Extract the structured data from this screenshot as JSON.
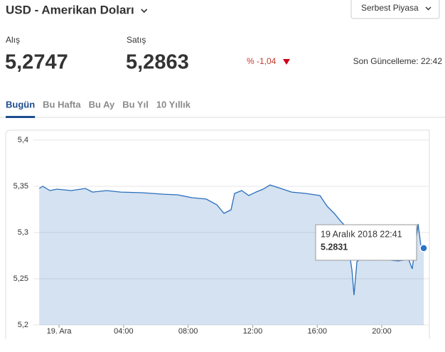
{
  "header": {
    "title": "USD - Amerikan Doları",
    "market_select": "Serbest Piyasa"
  },
  "quotes": {
    "buy_label": "Alış",
    "buy": "5,2747",
    "sell_label": "Satış",
    "sell": "5,2863",
    "change": "% -1,04",
    "updated": "Son Güncelleme: 22:42"
  },
  "tabs": [
    "Bugün",
    "Bu Hafta",
    "Bu Ay",
    "Bu Yıl",
    "10 Yıllık"
  ],
  "active_tab": 0,
  "chart_data": {
    "type": "area",
    "x": [
      -1.23,
      -1.01,
      -0.57,
      -0.13,
      0.75,
      1.63,
      2.07,
      2.95,
      3.83,
      5.15,
      6.48,
      7.36,
      8.24,
      9.12,
      9.78,
      10.22,
      10.66,
      10.88,
      11.32,
      11.76,
      12.2,
      12.64,
      13.08,
      13.74,
      14.41,
      15.29,
      16.17,
      16.61,
      17.05,
      17.49,
      17.84,
      18.02,
      18.15,
      18.28,
      18.46,
      18.81,
      19.25,
      20.13,
      21.01,
      21.67,
      21.89,
      22.11,
      22.25,
      22.42,
      22.6
    ],
    "values": [
      5.3477,
      5.35,
      5.3454,
      5.3469,
      5.3454,
      5.3477,
      5.3438,
      5.3454,
      5.3438,
      5.3431,
      5.3415,
      5.3408,
      5.3377,
      5.3362,
      5.33,
      5.3208,
      5.3246,
      5.3423,
      5.3454,
      5.34,
      5.3438,
      5.3469,
      5.3515,
      5.3477,
      5.3438,
      5.3423,
      5.34,
      5.3285,
      5.3208,
      5.3115,
      5.3054,
      5.2746,
      5.2592,
      5.2323,
      5.2685,
      5.2731,
      5.27,
      5.2708,
      5.2692,
      5.2708,
      5.2608,
      5.29,
      5.3092,
      5.2862,
      5.2831
    ],
    "color": "#2a6ebb",
    "xlim": [
      -1.59,
      22.95
    ],
    "ylim": [
      5.2,
      5.4
    ],
    "xticks": [
      {
        "value": 0,
        "label": "19. Ara"
      },
      {
        "value": 4,
        "label": "04:00"
      },
      {
        "value": 8,
        "label": "08:00"
      },
      {
        "value": 12,
        "label": "12:00"
      },
      {
        "value": 16,
        "label": "16:00"
      },
      {
        "value": 20,
        "label": "20:00"
      }
    ],
    "yticks": [
      {
        "value": 5.2,
        "label": "5,2"
      },
      {
        "value": 5.25,
        "label": "5,25"
      },
      {
        "value": 5.3,
        "label": "5,3"
      },
      {
        "value": 5.35,
        "label": "5,35"
      },
      {
        "value": 5.4,
        "label": "5,4"
      }
    ],
    "grid": true,
    "tooltip": {
      "title": "19 Aralık 2018 22:41",
      "value": "5.2831"
    }
  }
}
